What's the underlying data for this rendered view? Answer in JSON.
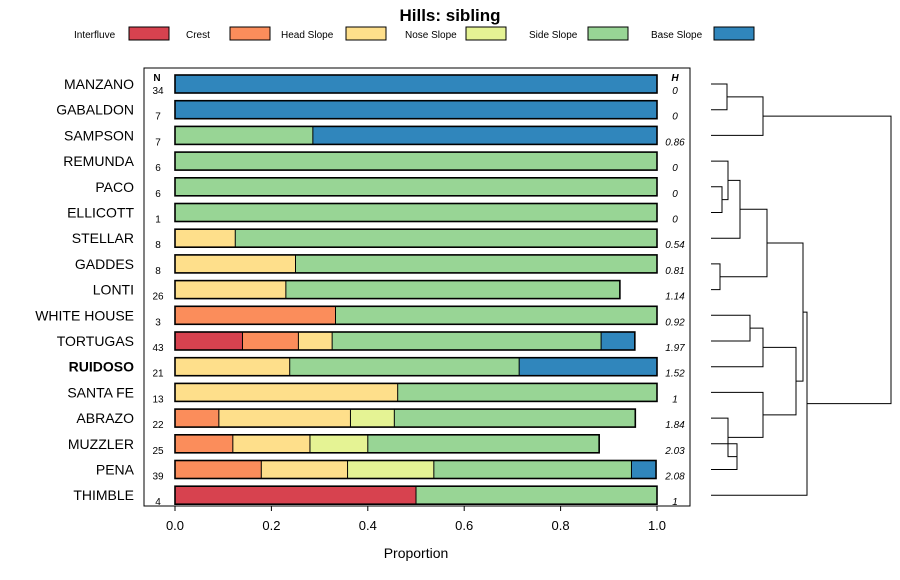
{
  "chart_data": {
    "type": "bar",
    "subtype": "stacked-horizontal-proportion",
    "title": "Hills: sibling",
    "xlabel": "Proportion",
    "ylabel": "",
    "xlim": [
      0,
      1
    ],
    "x_ticks": [
      "0.0",
      "0.2",
      "0.4",
      "0.6",
      "0.8",
      "1.0"
    ],
    "n_header": "N",
    "h_header": "H",
    "highlight_category": "RUIDOSO",
    "series": [
      {
        "name": "Interfluve",
        "color": "#d7424f"
      },
      {
        "name": "Crest",
        "color": "#fb8d5b"
      },
      {
        "name": "Head Slope",
        "color": "#fedf8b"
      },
      {
        "name": "Nose Slope",
        "color": "#e5f394"
      },
      {
        "name": "Side Slope",
        "color": "#98d595"
      },
      {
        "name": "Base Slope",
        "color": "#3086bc"
      }
    ],
    "categories": [
      "MANZANO",
      "GABALDON",
      "SAMPSON",
      "REMUNDA",
      "PACO",
      "ELLICOTT",
      "STELLAR",
      "GADDES",
      "LONTI",
      "WHITE HOUSE",
      "TORTUGAS",
      "RUIDOSO",
      "SANTA FE",
      "ABRAZO",
      "MUZZLER",
      "PENA",
      "THIMBLE"
    ],
    "n": [
      "34",
      "7",
      "7",
      "6",
      "6",
      "1",
      "8",
      "8",
      "26",
      "3",
      "43",
      "21",
      "13",
      "22",
      "25",
      "39",
      "4"
    ],
    "h": [
      "0",
      "0",
      "0.86",
      "0",
      "0",
      "0",
      "0.54",
      "0.81",
      "1.14",
      "0.92",
      "1.97",
      "1.52",
      "1",
      "1.84",
      "2.03",
      "2.08",
      "1"
    ],
    "values": [
      [
        0,
        0,
        0,
        0,
        0,
        1.0
      ],
      [
        0,
        0,
        0,
        0,
        0,
        1.0
      ],
      [
        0,
        0,
        0,
        0,
        0.286,
        0.714
      ],
      [
        0,
        0,
        0,
        0,
        1.0,
        0
      ],
      [
        0,
        0,
        0,
        0,
        1.0,
        0
      ],
      [
        0,
        0,
        0,
        0,
        1.0,
        0
      ],
      [
        0,
        0,
        0.125,
        0,
        0.875,
        0
      ],
      [
        0,
        0,
        0.25,
        0,
        0.75,
        0
      ],
      [
        0,
        0,
        0.23,
        0,
        0.693,
        0
      ],
      [
        0,
        0.333,
        0,
        0,
        0.667,
        0
      ],
      [
        0.14,
        0.116,
        0.07,
        0,
        0.558,
        0.07
      ],
      [
        0,
        0,
        0.238,
        0,
        0.476,
        0.286
      ],
      [
        0,
        0,
        0.462,
        0,
        0.538,
        0
      ],
      [
        0,
        0.091,
        0.273,
        0.091,
        0.5,
        0
      ],
      [
        0,
        0.12,
        0.16,
        0.12,
        0.48,
        0
      ],
      [
        0,
        0.179,
        0.179,
        0.179,
        0.41,
        0.051
      ],
      [
        0.5,
        0,
        0,
        0,
        0.5,
        0
      ]
    ]
  }
}
